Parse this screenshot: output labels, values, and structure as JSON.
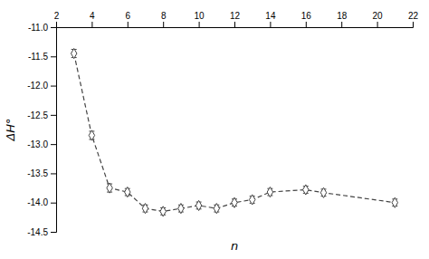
{
  "chart_data": {
    "type": "line",
    "x": [
      3,
      4,
      5,
      6,
      7,
      8,
      9,
      10,
      11,
      12,
      13,
      14,
      16,
      17,
      21
    ],
    "values": [
      -11.45,
      -12.85,
      -13.75,
      -13.82,
      -14.1,
      -14.15,
      -14.1,
      -14.05,
      -14.1,
      -14.0,
      -13.95,
      -13.82,
      -13.78,
      -13.83,
      -14.0
    ],
    "errors": [
      0.07,
      0.07,
      0.07,
      0.06,
      0.06,
      0.06,
      0.06,
      0.06,
      0.06,
      0.06,
      0.06,
      0.06,
      0.06,
      0.06,
      0.06
    ],
    "xlabel": "n",
    "ylabel": "ΔH°",
    "xlim": [
      2,
      22
    ],
    "ylim": [
      -14.5,
      -11.0
    ],
    "xticks": [
      2,
      4,
      6,
      8,
      10,
      12,
      14,
      16,
      18,
      20,
      22
    ],
    "yticks": [
      -14.5,
      {
        "value": -14.0,
        "label": "-14.0"
      },
      -13.5,
      {
        "value": -13.0,
        "label": "-13.0"
      },
      -12.5,
      {
        "value": -12.0,
        "label": "-12.0"
      },
      -11.5,
      {
        "value": -11.0,
        "label": "-11.0"
      }
    ],
    "color": "#444444",
    "marker": "diamond",
    "line_style": "dashed",
    "grid": false
  }
}
